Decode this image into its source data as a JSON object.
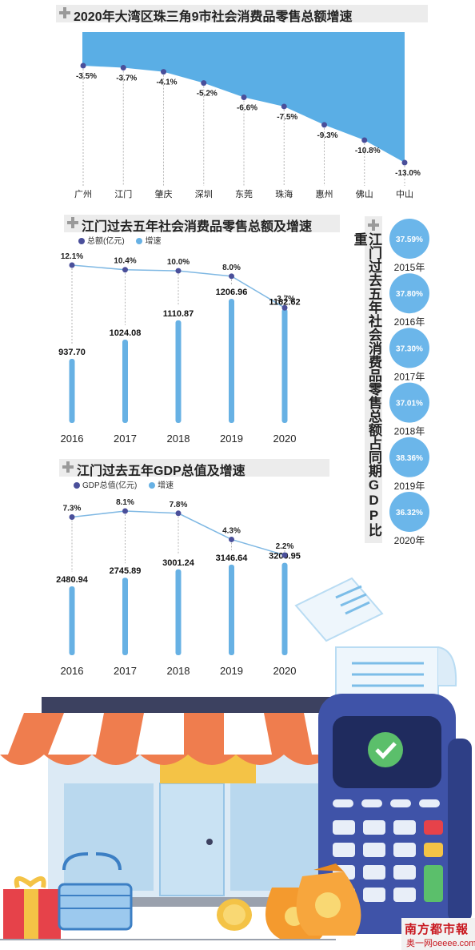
{
  "charts_text": {
    "c1_title": "2020年大湾区珠三角9市社会消费品零售总额增速",
    "c2_title": "江门过去五年社会消费品零售总额及增速",
    "c2_legend_total": "总额(亿元)",
    "c2_legend_rate": "增速",
    "c3_title": "江门过去五年GDP总值及增速",
    "c3_legend_total": "GDP总值(亿元)",
    "c3_legend_rate": "增速",
    "c4_title": "江门过去五年社会消费品零售总额占同期GDP比重"
  },
  "logo": {
    "line1": "南方都市報",
    "line2": "奥一网oeeee.com"
  },
  "colors": {
    "dot": "#4a4f9a",
    "bar": "#67b1e4",
    "area": "#5aaee5",
    "circle": "#6bb6ea",
    "line": "#7fb8e3"
  },
  "chart_data": [
    {
      "type": "area",
      "title": "2020年大湾区珠三角9市社会消费品零售总额增速",
      "categories": [
        "广州",
        "江门",
        "肇庆",
        "深圳",
        "东莞",
        "珠海",
        "惠州",
        "佛山",
        "中山"
      ],
      "values": [
        -3.5,
        -3.7,
        -4.1,
        -5.2,
        -6.6,
        -7.5,
        -9.3,
        -10.8,
        -13.0
      ],
      "labels": [
        "-3.5%",
        "-3.7%",
        "-4.1%",
        "-5.2%",
        "-6.6%",
        "-7.5%",
        "-9.3%",
        "-10.8%",
        "-13.0%"
      ],
      "ylim": [
        -13.0,
        0
      ]
    },
    {
      "type": "bar",
      "title": "江门过去五年社会消费品零售总额及增速",
      "categories": [
        "2016",
        "2017",
        "2018",
        "2019",
        "2020"
      ],
      "series": [
        {
          "name": "总额(亿元)",
          "values": [
            937.7,
            1024.08,
            1110.87,
            1206.96,
            1162.62
          ],
          "labels": [
            "937.70",
            "1024.08",
            "1110.87",
            "1206.96",
            "1162.62"
          ]
        },
        {
          "name": "增速",
          "values": [
            12.1,
            10.4,
            10.0,
            8.0,
            -3.7
          ],
          "labels": [
            "12.1%",
            "10.4%",
            "10.0%",
            "8.0%",
            "-3.7%"
          ]
        }
      ]
    },
    {
      "type": "bar",
      "title": "江门过去五年GDP总值及增速",
      "categories": [
        "2016",
        "2017",
        "2018",
        "2019",
        "2020"
      ],
      "series": [
        {
          "name": "GDP总值(亿元)",
          "values": [
            2480.94,
            2745.89,
            3001.24,
            3146.64,
            3200.95
          ],
          "labels": [
            "2480.94",
            "2745.89",
            "3001.24",
            "3146.64",
            "3200.95"
          ]
        },
        {
          "name": "增速",
          "values": [
            7.3,
            8.1,
            7.8,
            4.3,
            2.2
          ],
          "labels": [
            "7.3%",
            "8.1%",
            "7.8%",
            "4.3%",
            "2.2%"
          ]
        }
      ]
    },
    {
      "type": "table",
      "title": "江门过去五年社会消费品零售总额占同期GDP比重",
      "categories": [
        "2015年",
        "2016年",
        "2017年",
        "2018年",
        "2019年",
        "2020年"
      ],
      "values": [
        37.59,
        37.8,
        37.3,
        37.01,
        38.36,
        36.32
      ],
      "labels": [
        "37.59%",
        "37.80%",
        "37.30%",
        "37.01%",
        "38.36%",
        "36.32%"
      ]
    }
  ]
}
